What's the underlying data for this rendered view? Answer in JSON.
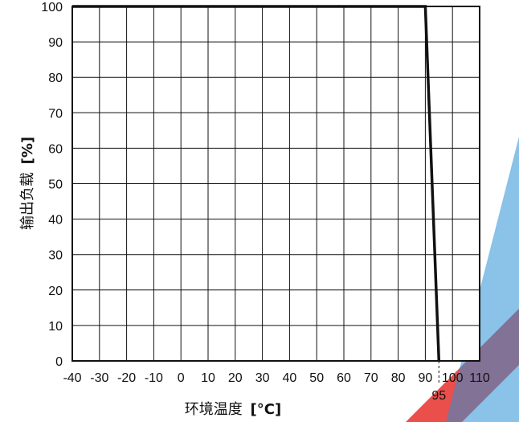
{
  "chart_data": {
    "type": "line",
    "title": "",
    "xlabel": "环境温度",
    "xunit": "[°C]",
    "ylabel": "输出负载",
    "yunit": "[%]",
    "xlim": [
      -40,
      110
    ],
    "ylim": [
      0,
      100
    ],
    "x_ticks": [
      "-40",
      "-30",
      "-20",
      "-10",
      "0",
      "10",
      "20",
      "30",
      "40",
      "50",
      "60",
      "70",
      "80",
      "90",
      "100",
      "110"
    ],
    "y_ticks": [
      "0",
      "10",
      "20",
      "30",
      "40",
      "50",
      "60",
      "70",
      "80",
      "90",
      "100"
    ],
    "marked_x": "95",
    "grid": true,
    "legend": "none",
    "series": [
      {
        "x": [
          -40,
          90,
          95
        ],
        "y": [
          100,
          100,
          0
        ]
      }
    ],
    "colors": {
      "line": "#111111",
      "grid": "#111111",
      "frame": "#111111",
      "watermark_red": "#e8302c",
      "watermark_blue": "#2a8fd6"
    }
  }
}
